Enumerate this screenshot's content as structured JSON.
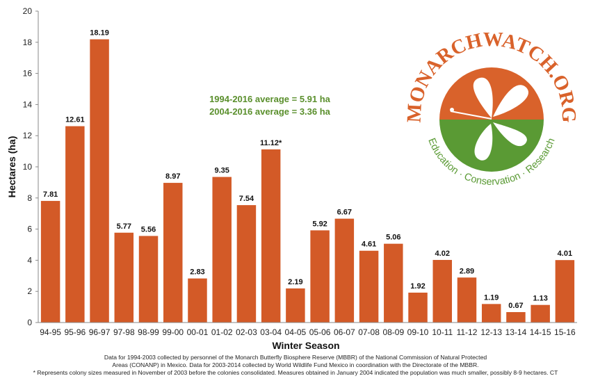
{
  "chart_data": {
    "type": "bar",
    "categories": [
      "94-95",
      "95-96",
      "96-97",
      "97-98",
      "98-99",
      "99-00",
      "00-01",
      "01-02",
      "02-03",
      "03-04",
      "04-05",
      "05-06",
      "06-07",
      "07-08",
      "08-09",
      "09-10",
      "10-11",
      "11-12",
      "12-13",
      "13-14",
      "14-15",
      "15-16"
    ],
    "values": [
      7.81,
      12.61,
      18.19,
      5.77,
      5.56,
      8.97,
      2.83,
      9.35,
      7.54,
      11.12,
      2.19,
      5.92,
      6.67,
      4.61,
      5.06,
      1.92,
      4.02,
      2.89,
      1.19,
      0.67,
      1.13,
      4.01
    ],
    "value_labels": [
      "7.81",
      "12.61",
      "18.19",
      "5.77",
      "5.56",
      "8.97",
      "2.83",
      "9.35",
      "7.54",
      "11.12*",
      "2.19",
      "5.92",
      "6.67",
      "4.61",
      "5.06",
      "1.92",
      "4.02",
      "2.89",
      "1.19",
      "0.67",
      "1.13",
      "4.01"
    ],
    "xlabel": "Winter Season",
    "ylabel": "Hectares (ha)",
    "ylim": [
      0,
      20
    ],
    "yticks": [
      0,
      2,
      4,
      6,
      8,
      10,
      12,
      14,
      16,
      18,
      20
    ],
    "grid": false,
    "bar_color": "#d35a27"
  },
  "annotations": {
    "avg1": "1994-2016 average = 5.91 ha",
    "avg2": "2004-2016 average = 3.36 ha",
    "avg_color": "#5a8f2c"
  },
  "logo": {
    "name": "MONARCHWATCH.ORG",
    "tagline": "Education · Conservation · Research",
    "orange": "#d9622b",
    "green": "#5a9a34"
  },
  "footnotes": {
    "line1": "Data for 1994-2003 collected by personnel of the Monarch Butterfly Biosphere Reserve (MBBR) of the National Commission of Natural Protected",
    "line2": "Areas (CONANP) in Mexico. Data for 2003-2014 collected by World Wildlife Fund Mexico in coordination with the Directorate of the MBBR.",
    "line3": "* Represents colony sizes measured in November of 2003 before the colonies consolidated. Measures obtained in January 2004 indicated the population was much smaller, possibly 8-9 hectares. CT"
  }
}
